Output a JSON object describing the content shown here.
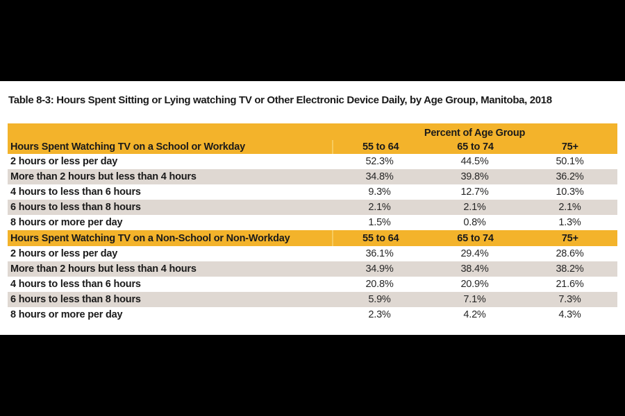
{
  "title": "Table 8-3: Hours Spent Sitting or Lying watching TV or Other Electronic Device Daily, by Age Group, Manitoba, 2018",
  "colors": {
    "gold": "#F3B32B",
    "gold_divider": "#F7CB5E",
    "row_alt": "#DFD8D2",
    "text": "#1A1A1A",
    "value_text": "#262626",
    "page_bg": "#FFFFFF",
    "letterbox": "#000000"
  },
  "chart_data": {
    "type": "table",
    "column_group_label": "Percent of Age Group",
    "age_columns": [
      "55 to 64",
      "65 to 74",
      "75+"
    ],
    "sections": [
      {
        "header": "Hours Spent Watching TV on a School or Workday",
        "rows": [
          {
            "label": "2 hours or less per day",
            "values": [
              "52.3%",
              "44.5%",
              "50.1%"
            ]
          },
          {
            "label": "More than 2 hours but less than 4 hours",
            "values": [
              "34.8%",
              "39.8%",
              "36.2%"
            ]
          },
          {
            "label": "4 hours to less than 6 hours",
            "values": [
              "9.3%",
              "12.7%",
              "10.3%"
            ]
          },
          {
            "label": "6 hours to less than 8 hours",
            "values": [
              "2.1%",
              "2.1%",
              "2.1%"
            ]
          },
          {
            "label": "8 hours or more per day",
            "values": [
              "1.5%",
              "0.8%",
              "1.3%"
            ]
          }
        ]
      },
      {
        "header": "Hours Spent Watching TV on a Non-School or Non-Workday",
        "rows": [
          {
            "label": "2 hours or less per day",
            "values": [
              "36.1%",
              "29.4%",
              "28.6%"
            ]
          },
          {
            "label": "More than 2 hours but less than 4 hours",
            "values": [
              "34.9%",
              "38.4%",
              "38.2%"
            ]
          },
          {
            "label": "4 hours to less than 6 hours",
            "values": [
              "20.8%",
              "20.9%",
              "21.6%"
            ]
          },
          {
            "label": "6 hours to less than 8 hours",
            "values": [
              "5.9%",
              "7.1%",
              "7.3%"
            ]
          },
          {
            "label": "8 hours or more per day",
            "values": [
              "2.3%",
              "4.2%",
              "4.3%"
            ]
          }
        ]
      }
    ]
  }
}
